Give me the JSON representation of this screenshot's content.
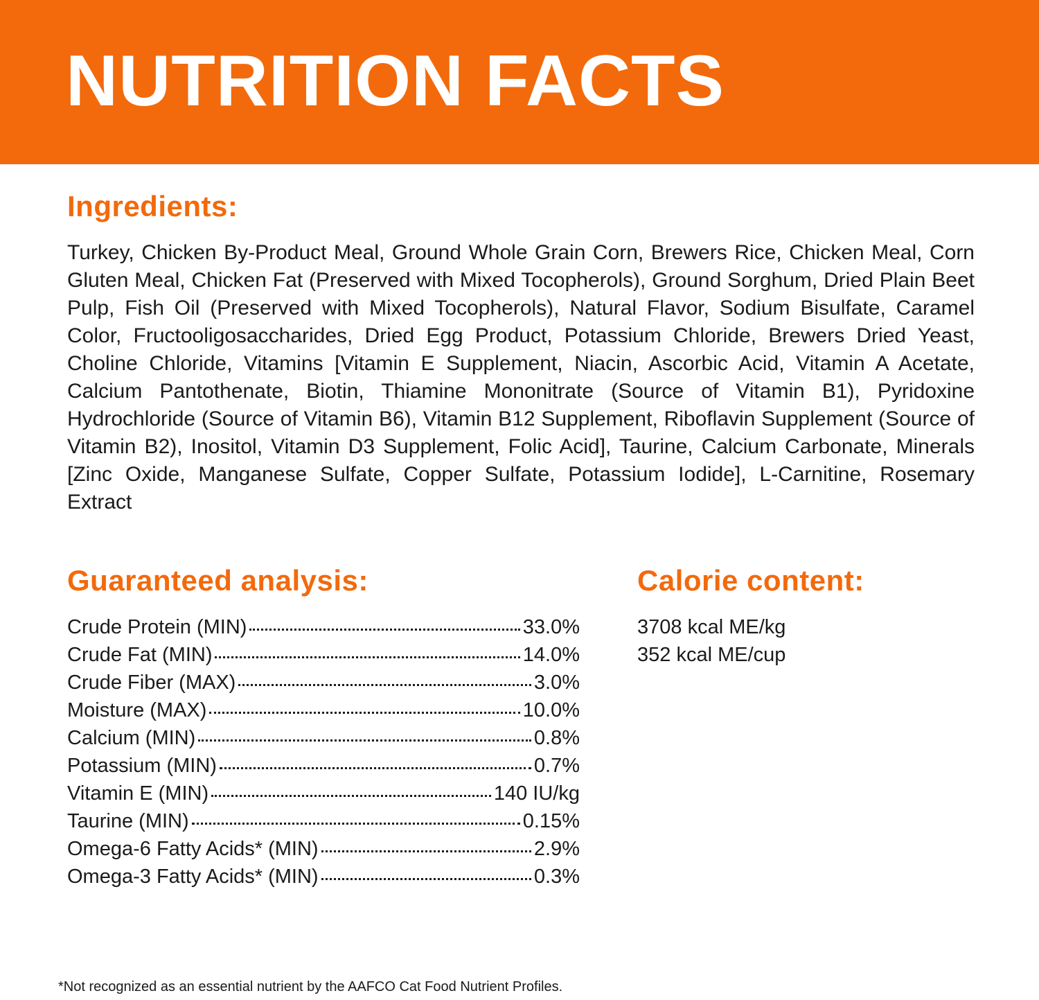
{
  "header": {
    "title": "NUTRITION FACTS"
  },
  "ingredients": {
    "heading": "Ingredients:",
    "text": "Turkey, Chicken By-Product Meal, Ground Whole Grain Corn, Brewers Rice, Chicken Meal, Corn Gluten Meal, Chicken Fat (Preserved with Mixed Tocopherols), Ground Sorghum, Dried Plain Beet Pulp, Fish Oil (Preserved with Mixed Tocopherols), Natural Flavor, Sodium Bisulfate, Caramel Color, Fructooligosaccharides, Dried Egg Product, Potassium Chloride, Brewers Dried Yeast, Choline Chloride, Vitamins [Vitamin E Supplement, Niacin, Ascorbic Acid, Vitamin A Acetate, Calcium Pantothenate, Biotin, Thiamine Mononitrate (Source of Vitamin B1), Pyridoxine Hydrochloride (Source of Vitamin B6), Vitamin B12 Supplement, Riboflavin Supplement (Source of Vitamin B2), Inositol, Vitamin D3 Supplement, Folic Acid], Taurine, Calcium Carbonate, Minerals [Zinc Oxide, Manganese Sulfate, Copper Sulfate, Potassium Iodide], L-Carnitine, Rosemary Extract"
  },
  "analysis": {
    "heading": "Guaranteed analysis:",
    "rows": [
      {
        "label": "Crude Protein (MIN)",
        "value": "33.0%"
      },
      {
        "label": "Crude Fat (MIN)",
        "value": "14.0%"
      },
      {
        "label": "Crude Fiber (MAX)",
        "value": "3.0%"
      },
      {
        "label": "Moisture (MAX)",
        "value": "10.0%"
      },
      {
        "label": "Calcium (MIN)",
        "value": "0.8%"
      },
      {
        "label": "Potassium (MIN)",
        "value": "0.7%"
      },
      {
        "label": "Vitamin E (MIN)",
        "value": "140 IU/kg"
      },
      {
        "label": "Taurine (MIN)",
        "value": "0.15%"
      },
      {
        "label": "Omega-6 Fatty Acids* (MIN)",
        "value": "2.9%"
      },
      {
        "label": "Omega-3 Fatty Acids* (MIN)",
        "value": "0.3%"
      }
    ]
  },
  "calories": {
    "heading": "Calorie content:",
    "lines": [
      "3708 kcal ME/kg",
      "352 kcal ME/cup"
    ]
  },
  "footnote": "*Not recognized as an essential nutrient by the AAFCO Cat Food Nutrient Profiles."
}
